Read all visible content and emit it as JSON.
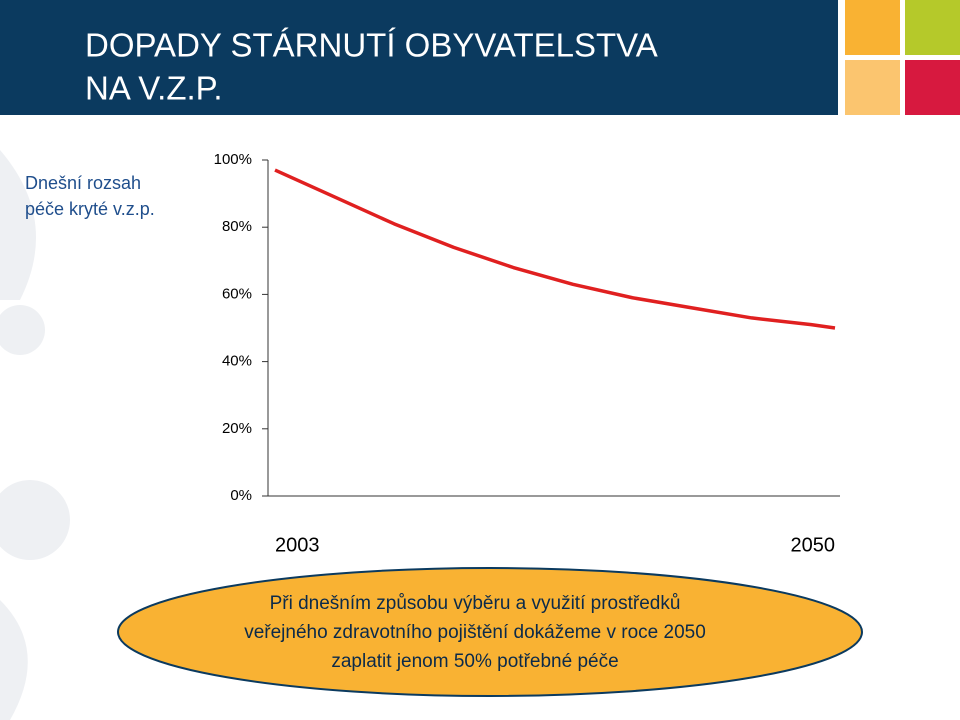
{
  "chart_data": {
    "type": "line",
    "title": [
      "DOPADY STÁRNUTÍ OBYVATELSTVA",
      "NA V.Z.P."
    ],
    "y_label": [
      "Dnešní rozsah",
      "péče kryté v.z.p."
    ],
    "x": [
      2003,
      2008,
      2013,
      2018,
      2023,
      2028,
      2033,
      2038,
      2043,
      2048,
      2050
    ],
    "series": [
      {
        "color": "#e02020",
        "values": [
          97,
          89,
          81,
          74,
          68,
          63,
          59,
          56,
          53,
          51,
          50
        ]
      }
    ],
    "xlim": [
      2003,
      2050
    ],
    "xticks": [
      2003,
      2050
    ],
    "ylim": [
      0,
      100
    ],
    "yticks": [
      {
        "value": 0,
        "label": "0%"
      },
      {
        "value": 20,
        "label": "20%"
      },
      {
        "value": 40,
        "label": "40%"
      },
      {
        "value": 60,
        "label": "60%"
      },
      {
        "value": 80,
        "label": "80%"
      },
      {
        "value": 100,
        "label": "100%"
      }
    ],
    "annotation": [
      "Při dnešním způsobu výběru a využití prostředků",
      "veřejného zdravotního pojištění dokážeme v roce 2050",
      "zaplatit jenom 50% potřebné péče"
    ]
  }
}
